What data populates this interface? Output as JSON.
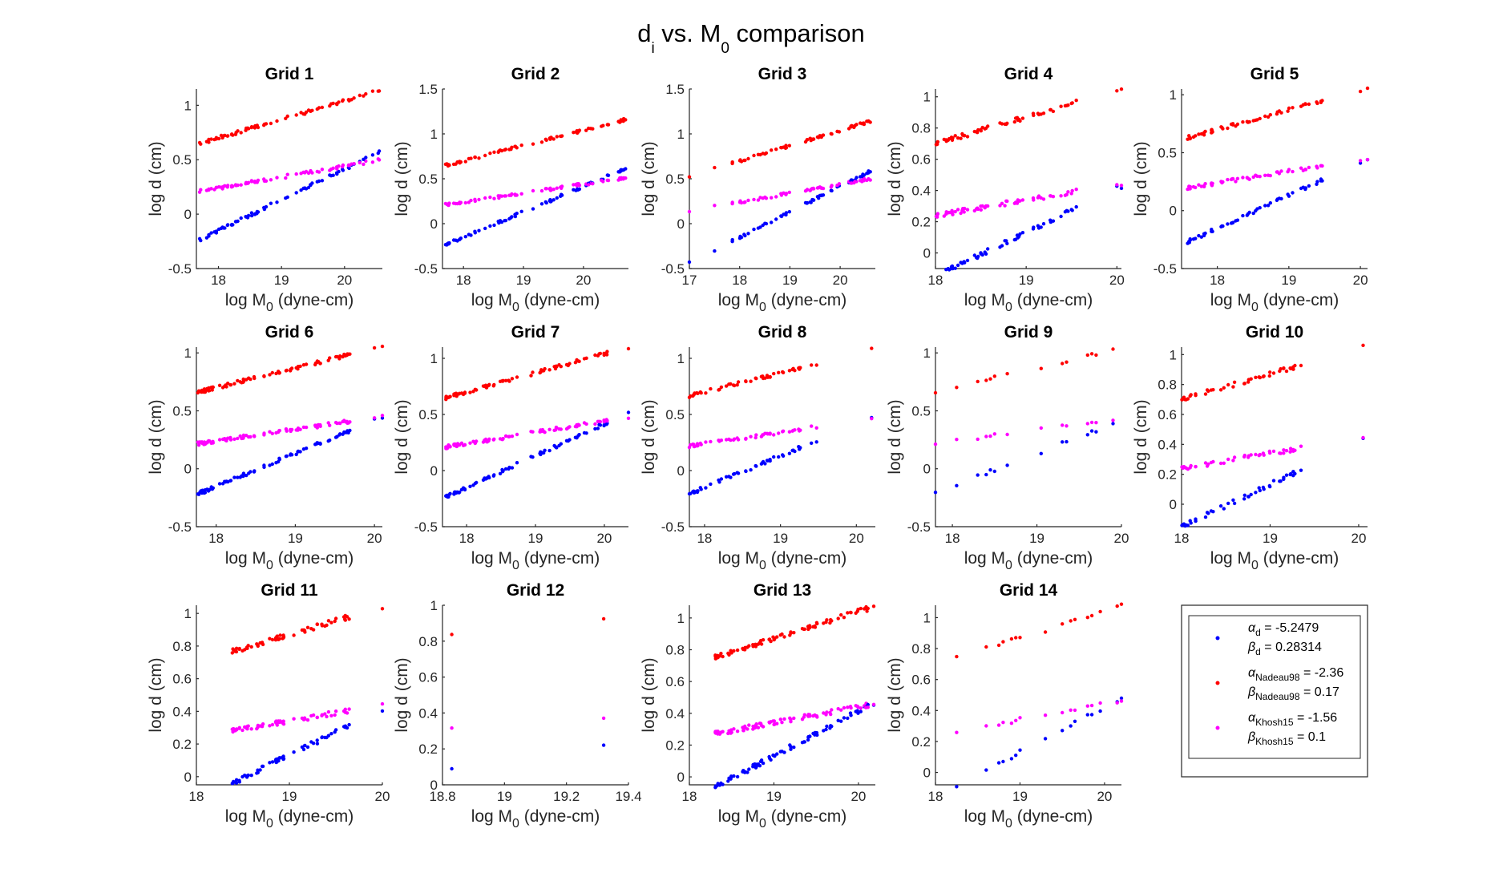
{
  "figure": {
    "title_main": "d",
    "title_sub": "i",
    "title_rest": " vs. M",
    "title_sub2": "0",
    "title_tail": " comparison"
  },
  "colors": {
    "d": "#0000ff",
    "nadeau98": "#ff0000",
    "khosh15": "#ff00ff",
    "axis": "#262626"
  },
  "legend": {
    "entries": [
      {
        "series": "d",
        "alpha_sub": "d",
        "alpha_value": " = -5.2479",
        "beta_sub": "d",
        "beta_value": " = 0.28314"
      },
      {
        "series": "nadeau98",
        "alpha_sub": "Nadeau98",
        "alpha_value": " = -2.36",
        "beta_sub": "Nadeau98",
        "beta_value": " = 0.17"
      },
      {
        "series": "khosh15",
        "alpha_sub": "Khosh15",
        "alpha_value": " = -1.56",
        "beta_sub": "Khosh15",
        "beta_value": " = 0.1"
      }
    ]
  },
  "chart_data": [
    {
      "type": "scatter",
      "title": "Grid 1",
      "xlabel": "log M_0 (dyne-cm)",
      "ylabel": "log d (cm)",
      "xlim": [
        17.65,
        20.6
      ],
      "ylim": [
        -0.5,
        1.15
      ],
      "xticks": [
        18,
        19,
        20
      ],
      "yticks": [
        -0.5,
        0,
        0.5,
        1
      ],
      "x_min": 17.7,
      "x_max": 20.55,
      "n_points": 70,
      "singles": [
        20.55,
        20.3,
        20.15
      ],
      "series": [
        {
          "name": "d",
          "alpha": -5.2479,
          "beta": 0.28314
        },
        {
          "name": "Nadeau98",
          "alpha": -2.36,
          "beta": 0.17
        },
        {
          "name": "Khosh15",
          "alpha": -1.56,
          "beta": 0.1
        }
      ]
    },
    {
      "type": "scatter",
      "title": "Grid 2",
      "xlabel": "log M_0 (dyne-cm)",
      "ylabel": "log d (cm)",
      "xlim": [
        17.65,
        20.75
      ],
      "ylim": [
        -0.5,
        1.5
      ],
      "xticks": [
        18,
        19,
        20
      ],
      "yticks": [
        -0.5,
        0,
        0.5,
        1,
        1.5
      ],
      "x_min": 17.7,
      "x_max": 20.7,
      "n_points": 70,
      "singles": [
        20.7,
        20.3
      ],
      "series": [
        {
          "name": "d",
          "alpha": -5.2479,
          "beta": 0.28314
        },
        {
          "name": "Nadeau98",
          "alpha": -2.36,
          "beta": 0.17
        },
        {
          "name": "Khosh15",
          "alpha": -1.56,
          "beta": 0.1
        }
      ]
    },
    {
      "type": "scatter",
      "title": "Grid 3",
      "xlabel": "log M_0 (dyne-cm)",
      "ylabel": "log d (cm)",
      "xlim": [
        17,
        20.7
      ],
      "ylim": [
        -0.5,
        1.5
      ],
      "xticks": [
        17,
        18,
        19,
        20
      ],
      "yticks": [
        -0.5,
        0,
        0.5,
        1,
        1.5
      ],
      "x_min": 17.85,
      "x_max": 20.6,
      "n_points": 55,
      "singles": [
        17.0,
        17.5,
        20.6,
        20.4
      ],
      "series": [
        {
          "name": "d",
          "alpha": -5.2479,
          "beta": 0.28314
        },
        {
          "name": "Nadeau98",
          "alpha": -2.36,
          "beta": 0.17
        },
        {
          "name": "Khosh15",
          "alpha": -1.56,
          "beta": 0.1
        }
      ]
    },
    {
      "type": "scatter",
      "title": "Grid 4",
      "xlabel": "log M_0 (dyne-cm)",
      "ylabel": "log d (cm)",
      "xlim": [
        18,
        20.05
      ],
      "ylim": [
        -0.1,
        1.05
      ],
      "xticks": [
        18,
        19,
        20
      ],
      "yticks": [
        0,
        0.2,
        0.4,
        0.6,
        0.8,
        1
      ],
      "x_min": 18.0,
      "x_max": 19.6,
      "n_points": 60,
      "singles": [
        20.0,
        20.05
      ],
      "series": [
        {
          "name": "d",
          "alpha": -5.2479,
          "beta": 0.28314
        },
        {
          "name": "Nadeau98",
          "alpha": -2.36,
          "beta": 0.17
        },
        {
          "name": "Khosh15",
          "alpha": -1.56,
          "beta": 0.1
        }
      ]
    },
    {
      "type": "scatter",
      "title": "Grid 5",
      "xlabel": "log M_0 (dyne-cm)",
      "ylabel": "log d (cm)",
      "xlim": [
        17.5,
        20.1
      ],
      "ylim": [
        -0.5,
        1.05
      ],
      "xticks": [
        18,
        19,
        20
      ],
      "yticks": [
        -0.5,
        0,
        0.5,
        1
      ],
      "x_min": 17.55,
      "x_max": 19.55,
      "n_points": 55,
      "singles": [
        20.0,
        20.1
      ],
      "series": [
        {
          "name": "d",
          "alpha": -5.2479,
          "beta": 0.28314
        },
        {
          "name": "Nadeau98",
          "alpha": -2.36,
          "beta": 0.17
        },
        {
          "name": "Khosh15",
          "alpha": -1.56,
          "beta": 0.1
        }
      ]
    },
    {
      "type": "scatter",
      "title": "Grid 6",
      "xlabel": "log M_0 (dyne-cm)",
      "ylabel": "log d (cm)",
      "xlim": [
        17.75,
        20.1
      ],
      "ylim": [
        -0.5,
        1.05
      ],
      "xticks": [
        18,
        19,
        20
      ],
      "yticks": [
        -0.5,
        0,
        0.5,
        1
      ],
      "x_min": 17.75,
      "x_max": 19.7,
      "n_points": 80,
      "singles": [
        20.0,
        20.1
      ],
      "series": [
        {
          "name": "d",
          "alpha": -5.2479,
          "beta": 0.28314
        },
        {
          "name": "Nadeau98",
          "alpha": -2.36,
          "beta": 0.17
        },
        {
          "name": "Khosh15",
          "alpha": -1.56,
          "beta": 0.1
        }
      ]
    },
    {
      "type": "scatter",
      "title": "Grid 7",
      "xlabel": "log M_0 (dyne-cm)",
      "ylabel": "log d (cm)",
      "xlim": [
        17.65,
        20.35
      ],
      "ylim": [
        -0.5,
        1.1
      ],
      "xticks": [
        18,
        19,
        20
      ],
      "yticks": [
        -0.5,
        0,
        0.5,
        1
      ],
      "x_min": 17.7,
      "x_max": 20.15,
      "n_points": 80,
      "singles": [
        20.35
      ],
      "series": [
        {
          "name": "d",
          "alpha": -5.2479,
          "beta": 0.28314
        },
        {
          "name": "Nadeau98",
          "alpha": -2.36,
          "beta": 0.17
        },
        {
          "name": "Khosh15",
          "alpha": -1.56,
          "beta": 0.1
        }
      ]
    },
    {
      "type": "scatter",
      "title": "Grid 8",
      "xlabel": "log M_0 (dyne-cm)",
      "ylabel": "log d (cm)",
      "xlim": [
        17.8,
        20.25
      ],
      "ylim": [
        -0.5,
        1.1
      ],
      "xticks": [
        18,
        19,
        20
      ],
      "yticks": [
        -0.5,
        0,
        0.5,
        1
      ],
      "x_min": 17.8,
      "x_max": 19.5,
      "n_points": 50,
      "singles": [
        20.2
      ],
      "series": [
        {
          "name": "d",
          "alpha": -5.2479,
          "beta": 0.28314
        },
        {
          "name": "Nadeau98",
          "alpha": -2.36,
          "beta": 0.17
        },
        {
          "name": "Khosh15",
          "alpha": -1.56,
          "beta": 0.1
        }
      ]
    },
    {
      "type": "scatter",
      "title": "Grid 9",
      "xlabel": "log M_0 (dyne-cm)",
      "ylabel": "log d (cm)",
      "xlim": [
        17.8,
        20.0
      ],
      "ylim": [
        -0.5,
        1.05
      ],
      "xticks": [
        18,
        19,
        20
      ],
      "yticks": [
        -0.5,
        0,
        0.5,
        1
      ],
      "x_min": 17.8,
      "x_max": 19.9,
      "n_points": 0,
      "singles": [
        17.8,
        18.05,
        18.3,
        18.4,
        18.45,
        18.5,
        18.65,
        19.05,
        19.3,
        19.35,
        19.6,
        19.65,
        19.7,
        19.9
      ],
      "series": [
        {
          "name": "d",
          "alpha": -5.2479,
          "beta": 0.28314
        },
        {
          "name": "Nadeau98",
          "alpha": -2.36,
          "beta": 0.17
        },
        {
          "name": "Khosh15",
          "alpha": -1.56,
          "beta": 0.1
        }
      ]
    },
    {
      "type": "scatter",
      "title": "Grid 10",
      "xlabel": "log M_0 (dyne-cm)",
      "ylabel": "log d (cm)",
      "xlim": [
        18,
        20.1
      ],
      "ylim": [
        -0.15,
        1.05
      ],
      "xticks": [
        18,
        19,
        20
      ],
      "yticks": [
        0,
        0.2,
        0.4,
        0.6,
        0.8,
        1
      ],
      "x_min": 18.0,
      "x_max": 19.35,
      "n_points": 45,
      "singles": [
        20.05
      ],
      "series": [
        {
          "name": "d",
          "alpha": -5.2479,
          "beta": 0.28314
        },
        {
          "name": "Nadeau98",
          "alpha": -2.36,
          "beta": 0.17
        },
        {
          "name": "Khosh15",
          "alpha": -1.56,
          "beta": 0.1
        }
      ]
    },
    {
      "type": "scatter",
      "title": "Grid 11",
      "xlabel": "log M_0 (dyne-cm)",
      "ylabel": "log d (cm)",
      "xlim": [
        18,
        20
      ],
      "ylim": [
        -0.05,
        1.05
      ],
      "xticks": [
        18,
        19,
        20
      ],
      "yticks": [
        0,
        0.2,
        0.4,
        0.6,
        0.8,
        1
      ],
      "x_min": 18.35,
      "x_max": 19.65,
      "n_points": 60,
      "singles": [
        20.0
      ],
      "series": [
        {
          "name": "d",
          "alpha": -5.2479,
          "beta": 0.28314
        },
        {
          "name": "Nadeau98",
          "alpha": -2.36,
          "beta": 0.17
        },
        {
          "name": "Khosh15",
          "alpha": -1.56,
          "beta": 0.1
        }
      ]
    },
    {
      "type": "scatter",
      "title": "Grid 12",
      "xlabel": "log M_0 (dyne-cm)",
      "ylabel": "log d (cm)",
      "xlim": [
        18.8,
        19.4
      ],
      "ylim": [
        0,
        1
      ],
      "xticks": [
        18.8,
        19,
        19.2,
        19.4
      ],
      "yticks": [
        0,
        0.2,
        0.4,
        0.6,
        0.8,
        1
      ],
      "x_min": 18.83,
      "x_max": 19.32,
      "n_points": 0,
      "singles": [
        18.83,
        19.32
      ],
      "series": [
        {
          "name": "d",
          "alpha": -5.2479,
          "beta": 0.28314
        },
        {
          "name": "Nadeau98",
          "alpha": -2.36,
          "beta": 0.17
        },
        {
          "name": "Khosh15",
          "alpha": -1.56,
          "beta": 0.1
        }
      ]
    },
    {
      "type": "scatter",
      "title": "Grid 13",
      "xlabel": "log M_0 (dyne-cm)",
      "ylabel": "log d (cm)",
      "xlim": [
        18,
        20.2
      ],
      "ylim": [
        -0.05,
        1.08
      ],
      "xticks": [
        18,
        19,
        20
      ],
      "yticks": [
        0,
        0.2,
        0.4,
        0.6,
        0.8,
        1
      ],
      "x_min": 18.3,
      "x_max": 20.2,
      "n_points": 85,
      "singles": [],
      "series": [
        {
          "name": "d",
          "alpha": -5.2479,
          "beta": 0.28314
        },
        {
          "name": "Nadeau98",
          "alpha": -2.36,
          "beta": 0.17
        },
        {
          "name": "Khosh15",
          "alpha": -1.56,
          "beta": 0.1
        }
      ]
    },
    {
      "type": "scatter",
      "title": "Grid 14",
      "xlabel": "log M_0 (dyne-cm)",
      "ylabel": "log d (cm)",
      "xlim": [
        18,
        20.2
      ],
      "ylim": [
        -0.08,
        1.08
      ],
      "xticks": [
        18,
        19,
        20
      ],
      "yticks": [
        0,
        0.2,
        0.4,
        0.6,
        0.8,
        1
      ],
      "x_min": 18.25,
      "x_max": 20.2,
      "n_points": 0,
      "singles": [
        18.25,
        18.6,
        18.75,
        18.8,
        18.9,
        18.95,
        19.0,
        19.3,
        19.5,
        19.6,
        19.65,
        19.8,
        19.85,
        19.95,
        20.15,
        20.2
      ],
      "series": [
        {
          "name": "d",
          "alpha": -5.2479,
          "beta": 0.28314
        },
        {
          "name": "Nadeau98",
          "alpha": -2.36,
          "beta": 0.17
        },
        {
          "name": "Khosh15",
          "alpha": -1.56,
          "beta": 0.1
        }
      ]
    }
  ]
}
